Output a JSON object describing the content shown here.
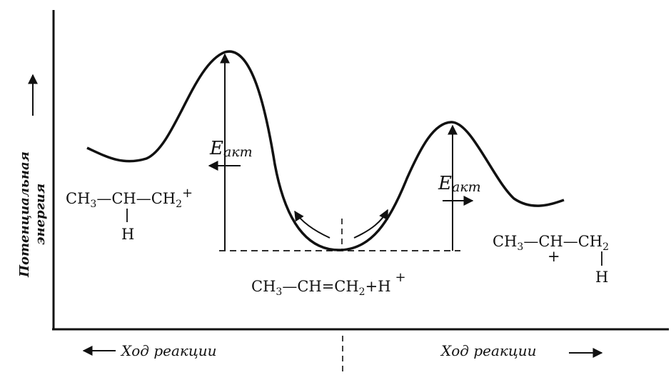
{
  "diagram": {
    "y_axis_label_line1": "Потенциальная",
    "y_axis_label_line2": "энергия",
    "x_axis_label_left": "Ход реакции",
    "x_axis_label_right": "Ход реакции",
    "activation_energy_left": {
      "letter": "E",
      "subscript": "акт"
    },
    "activation_energy_right": {
      "letter": "E",
      "subscript": "акт"
    },
    "cation_left": {
      "prefix": "CH",
      "prefix_sub": "3",
      "middle": "—CH—CH",
      "middle_sub": "2",
      "charge": "+",
      "below": "H"
    },
    "cation_right": {
      "prefix": "CH",
      "prefix_sub": "3",
      "middle": "—CH—CH",
      "middle_sub": "2",
      "charge": "+",
      "below": "H"
    },
    "reactants": {
      "prefix": "CH",
      "prefix_sub": "3",
      "middle": "—CH=CH",
      "middle_sub": "2",
      "suffix": "+H",
      "charge": "+"
    }
  }
}
